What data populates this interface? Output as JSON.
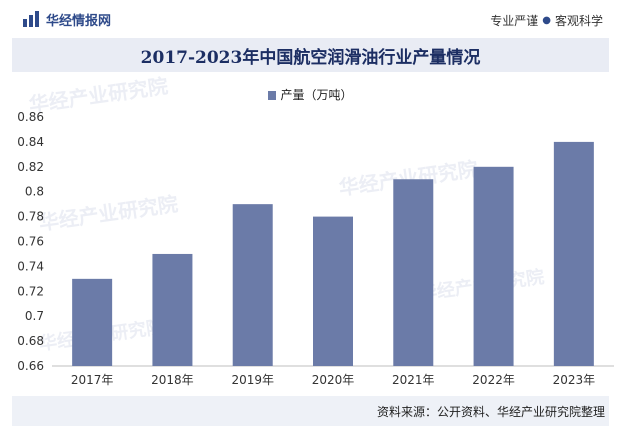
{
  "header": {
    "brand": "华经情报网",
    "tagline_left": "专业严谨",
    "tagline_right": "客观科学",
    "brand_color": "#2e4a8a"
  },
  "title": "2017-2023年中国航空润滑油行业产量情况",
  "source": "资料来源：公开资料、华经产业研究院整理",
  "watermark": "华经产业研究院",
  "chart_data": {
    "type": "bar",
    "categories": [
      "2017年",
      "2018年",
      "2019年",
      "2020年",
      "2021年",
      "2022年",
      "2023年"
    ],
    "series": [
      {
        "name": "产量（万吨）",
        "values": [
          0.73,
          0.75,
          0.79,
          0.78,
          0.81,
          0.82,
          0.84
        ],
        "color": "#6b7ba8"
      }
    ],
    "ylim": [
      0.66,
      0.86
    ],
    "yticks": [
      "0.66",
      "0.68",
      "0.7",
      "0.72",
      "0.74",
      "0.76",
      "0.78",
      "0.8",
      "0.82",
      "0.84",
      "0.86"
    ],
    "legend_position": "top-center",
    "grid": false
  }
}
